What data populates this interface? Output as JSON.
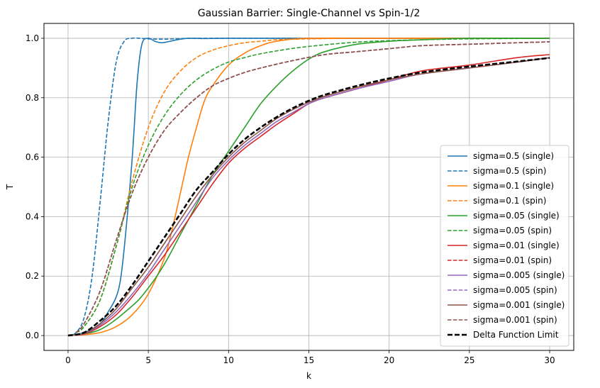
{
  "chart_data": {
    "type": "line",
    "title": "Gaussian Barrier: Single-Channel vs Spin-1/2",
    "xlabel": "k",
    "ylabel": "T",
    "xlim": [
      -1.5,
      31.5
    ],
    "ylim": [
      -0.05,
      1.05
    ],
    "xticks": [
      0,
      5,
      10,
      15,
      20,
      25,
      30
    ],
    "yticks": [
      0.0,
      0.2,
      0.4,
      0.6,
      0.8,
      1.0
    ],
    "xtick_labels": [
      "0",
      "5",
      "10",
      "15",
      "20",
      "25",
      "30"
    ],
    "ytick_labels": [
      "0.0",
      "0.2",
      "0.4",
      "0.6",
      "0.8",
      "1.0"
    ],
    "grid": true,
    "legend_position": "lower-right",
    "series": [
      {
        "name": "sigma=0.5 (single)",
        "color": "#1f77b4",
        "dash": "solid",
        "x": [
          0,
          1,
          2,
          2.5,
          3,
          3.3,
          3.6,
          4,
          4.3,
          4.6,
          5,
          5.4,
          5.8,
          6.2,
          6.8,
          7.5,
          8.5,
          10,
          15,
          20,
          25,
          30
        ],
        "y": [
          0,
          0.01,
          0.04,
          0.08,
          0.13,
          0.2,
          0.35,
          0.6,
          0.85,
          0.98,
          1.0,
          0.99,
          0.985,
          0.988,
          0.995,
          1.0,
          0.999,
          1.0,
          1.0,
          1.0,
          1.0,
          1.0
        ]
      },
      {
        "name": "sigma=0.5 (spin)",
        "color": "#1f77b4",
        "dash": "dashed",
        "x": [
          0,
          0.5,
          1,
          1.5,
          2,
          2.5,
          3,
          3.5,
          4,
          4.5,
          5,
          6,
          7,
          8,
          10,
          15,
          20,
          25,
          30
        ],
        "y": [
          0,
          0.01,
          0.06,
          0.2,
          0.45,
          0.72,
          0.92,
          0.99,
          1.0,
          1.0,
          0.998,
          0.997,
          0.999,
          1.0,
          1.0,
          1.0,
          1.0,
          1.0,
          1.0
        ]
      },
      {
        "name": "sigma=0.1 (single)",
        "color": "#ff7f0e",
        "dash": "solid",
        "x": [
          0,
          1,
          2,
          3,
          4,
          5,
          6,
          6.5,
          7,
          7.5,
          8,
          8.5,
          9,
          10,
          11,
          12,
          13,
          15,
          20,
          25,
          30
        ],
        "y": [
          0,
          0.003,
          0.01,
          0.03,
          0.07,
          0.14,
          0.26,
          0.36,
          0.48,
          0.6,
          0.7,
          0.79,
          0.84,
          0.91,
          0.95,
          0.975,
          0.99,
          1.0,
          1.0,
          1.0,
          1.0
        ]
      },
      {
        "name": "sigma=0.1 (spin)",
        "color": "#ff7f0e",
        "dash": "dashed",
        "x": [
          0.5,
          1,
          2,
          3,
          4,
          5,
          6,
          7,
          8,
          9,
          10,
          11,
          12,
          13,
          15,
          18,
          20,
          25,
          30
        ],
        "y": [
          0.01,
          0.03,
          0.12,
          0.3,
          0.52,
          0.7,
          0.82,
          0.89,
          0.935,
          0.96,
          0.975,
          0.985,
          0.99,
          0.995,
          0.998,
          1.0,
          1.0,
          1.0,
          1.0
        ]
      },
      {
        "name": "sigma=0.05 (single)",
        "color": "#2ca02c",
        "dash": "solid",
        "x": [
          0,
          2,
          4,
          5,
          6,
          7,
          8,
          9,
          10,
          11,
          12,
          13,
          14,
          15,
          16,
          18,
          20,
          22,
          25,
          30
        ],
        "y": [
          0,
          0.02,
          0.1,
          0.16,
          0.24,
          0.34,
          0.44,
          0.54,
          0.62,
          0.7,
          0.78,
          0.84,
          0.89,
          0.93,
          0.955,
          0.98,
          0.99,
          0.995,
          1.0,
          1.0
        ]
      },
      {
        "name": "sigma=0.05 (spin)",
        "color": "#2ca02c",
        "dash": "dashed",
        "x": [
          0.5,
          1,
          2,
          3,
          4,
          5,
          6,
          7,
          8,
          9,
          10,
          11,
          12,
          14,
          16,
          18,
          20,
          22,
          25,
          30
        ],
        "y": [
          0.01,
          0.03,
          0.12,
          0.3,
          0.5,
          0.64,
          0.74,
          0.81,
          0.86,
          0.895,
          0.92,
          0.935,
          0.948,
          0.966,
          0.978,
          0.987,
          0.992,
          0.995,
          0.998,
          1.0
        ]
      },
      {
        "name": "sigma=0.01 (single)",
        "color": "#d62728",
        "dash": "solid",
        "x": [
          0,
          1,
          2,
          3,
          4,
          5,
          6,
          7,
          8,
          9,
          10,
          11,
          12,
          13,
          14,
          15,
          16,
          18,
          20,
          22,
          25,
          28,
          30
        ],
        "y": [
          0,
          0.005,
          0.03,
          0.07,
          0.13,
          0.2,
          0.27,
          0.35,
          0.43,
          0.51,
          0.58,
          0.63,
          0.67,
          0.71,
          0.745,
          0.78,
          0.8,
          0.83,
          0.86,
          0.89,
          0.91,
          0.935,
          0.945
        ]
      },
      {
        "name": "sigma=0.01 (spin)",
        "color": "#d62728",
        "dash": "dashed",
        "x": [
          0.5,
          1,
          2,
          3,
          4,
          5,
          6,
          7,
          8,
          9,
          10,
          11,
          12,
          14,
          16,
          18,
          20,
          22,
          25,
          28,
          30
        ],
        "y": [
          0.01,
          0.04,
          0.15,
          0.32,
          0.48,
          0.6,
          0.69,
          0.75,
          0.8,
          0.84,
          0.865,
          0.885,
          0.9,
          0.925,
          0.945,
          0.955,
          0.965,
          0.975,
          0.98,
          0.985,
          0.988
        ]
      },
      {
        "name": "sigma=0.005 (single)",
        "color": "#9467bd",
        "dash": "solid",
        "x": [
          0,
          1,
          2,
          3,
          4,
          5,
          6,
          7,
          8,
          9,
          10,
          11,
          12,
          13,
          14,
          15,
          16,
          18,
          20,
          22,
          25,
          28,
          30
        ],
        "y": [
          0,
          0.006,
          0.035,
          0.08,
          0.14,
          0.21,
          0.29,
          0.37,
          0.45,
          0.53,
          0.59,
          0.64,
          0.68,
          0.72,
          0.75,
          0.78,
          0.8,
          0.83,
          0.855,
          0.88,
          0.9,
          0.92,
          0.935
        ]
      },
      {
        "name": "sigma=0.005 (spin)",
        "color": "#9467bd",
        "dash": "dashed",
        "x": [
          0.5,
          1,
          2,
          3,
          4,
          5,
          6,
          7,
          8,
          9,
          10,
          11,
          12,
          14,
          16,
          18,
          20,
          22,
          25,
          28,
          30
        ],
        "y": [
          0.01,
          0.04,
          0.15,
          0.32,
          0.48,
          0.6,
          0.69,
          0.75,
          0.8,
          0.84,
          0.865,
          0.885,
          0.9,
          0.925,
          0.945,
          0.955,
          0.965,
          0.975,
          0.98,
          0.985,
          0.988
        ]
      },
      {
        "name": "sigma=0.001 (single)",
        "color": "#8c564b",
        "dash": "solid",
        "x": [
          0,
          1,
          2,
          3,
          4,
          5,
          6,
          7,
          8,
          9,
          10,
          11,
          12,
          13,
          14,
          15,
          16,
          18,
          20,
          22,
          25,
          28,
          30
        ],
        "y": [
          0,
          0.007,
          0.04,
          0.09,
          0.16,
          0.23,
          0.31,
          0.39,
          0.47,
          0.54,
          0.6,
          0.65,
          0.69,
          0.73,
          0.76,
          0.785,
          0.805,
          0.835,
          0.86,
          0.88,
          0.9,
          0.92,
          0.935
        ]
      },
      {
        "name": "sigma=0.001 (spin)",
        "color": "#8c564b",
        "dash": "dashed",
        "x": [
          0.5,
          1,
          2,
          3,
          4,
          5,
          6,
          7,
          8,
          9,
          10,
          11,
          12,
          14,
          16,
          18,
          20,
          22,
          25,
          28,
          30
        ],
        "y": [
          0.01,
          0.04,
          0.15,
          0.32,
          0.48,
          0.6,
          0.69,
          0.75,
          0.8,
          0.84,
          0.865,
          0.885,
          0.9,
          0.925,
          0.945,
          0.955,
          0.965,
          0.975,
          0.98,
          0.985,
          0.988
        ]
      },
      {
        "name": "Delta Function Limit",
        "color": "#000000",
        "dash": "bold-dashed",
        "x": [
          0,
          1,
          2,
          3,
          4,
          5,
          6,
          7,
          8,
          9,
          10,
          11,
          12,
          13,
          14,
          15,
          16,
          18,
          20,
          22,
          25,
          28,
          30
        ],
        "y": [
          0,
          0.01,
          0.05,
          0.1,
          0.17,
          0.25,
          0.33,
          0.41,
          0.49,
          0.55,
          0.61,
          0.66,
          0.7,
          0.735,
          0.765,
          0.79,
          0.81,
          0.84,
          0.865,
          0.885,
          0.905,
          0.922,
          0.934
        ]
      }
    ]
  }
}
